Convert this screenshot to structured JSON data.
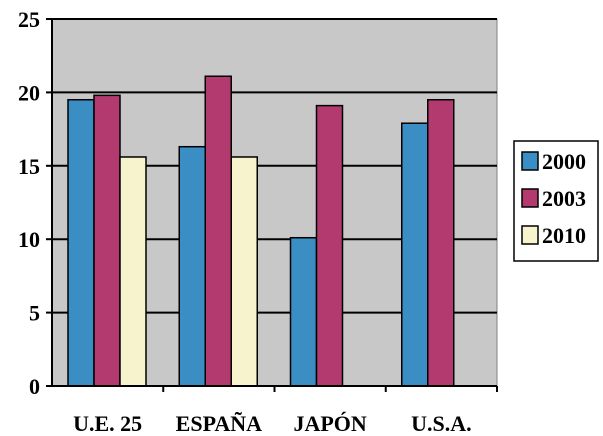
{
  "chart_data": {
    "type": "bar",
    "title": "",
    "xlabel": "",
    "ylabel": "",
    "categories": [
      "U.E. 25",
      "ESPAÑA",
      "JAPÓN",
      "U.S.A."
    ],
    "series": [
      {
        "name": "2000",
        "color": "#3a8ec4",
        "values": [
          19.5,
          16.3,
          10.1,
          17.9
        ]
      },
      {
        "name": "2003",
        "color": "#b23a6e",
        "values": [
          19.8,
          21.1,
          19.1,
          19.5
        ]
      },
      {
        "name": "2010",
        "color": "#f7f3cc",
        "values": [
          15.6,
          15.6,
          null,
          null
        ]
      }
    ],
    "ylim": [
      0,
      25
    ],
    "yticks": [
      0,
      5,
      10,
      15,
      20,
      25
    ],
    "grid": true,
    "legend_position": "right",
    "plot_background": "#c8c8c8"
  }
}
